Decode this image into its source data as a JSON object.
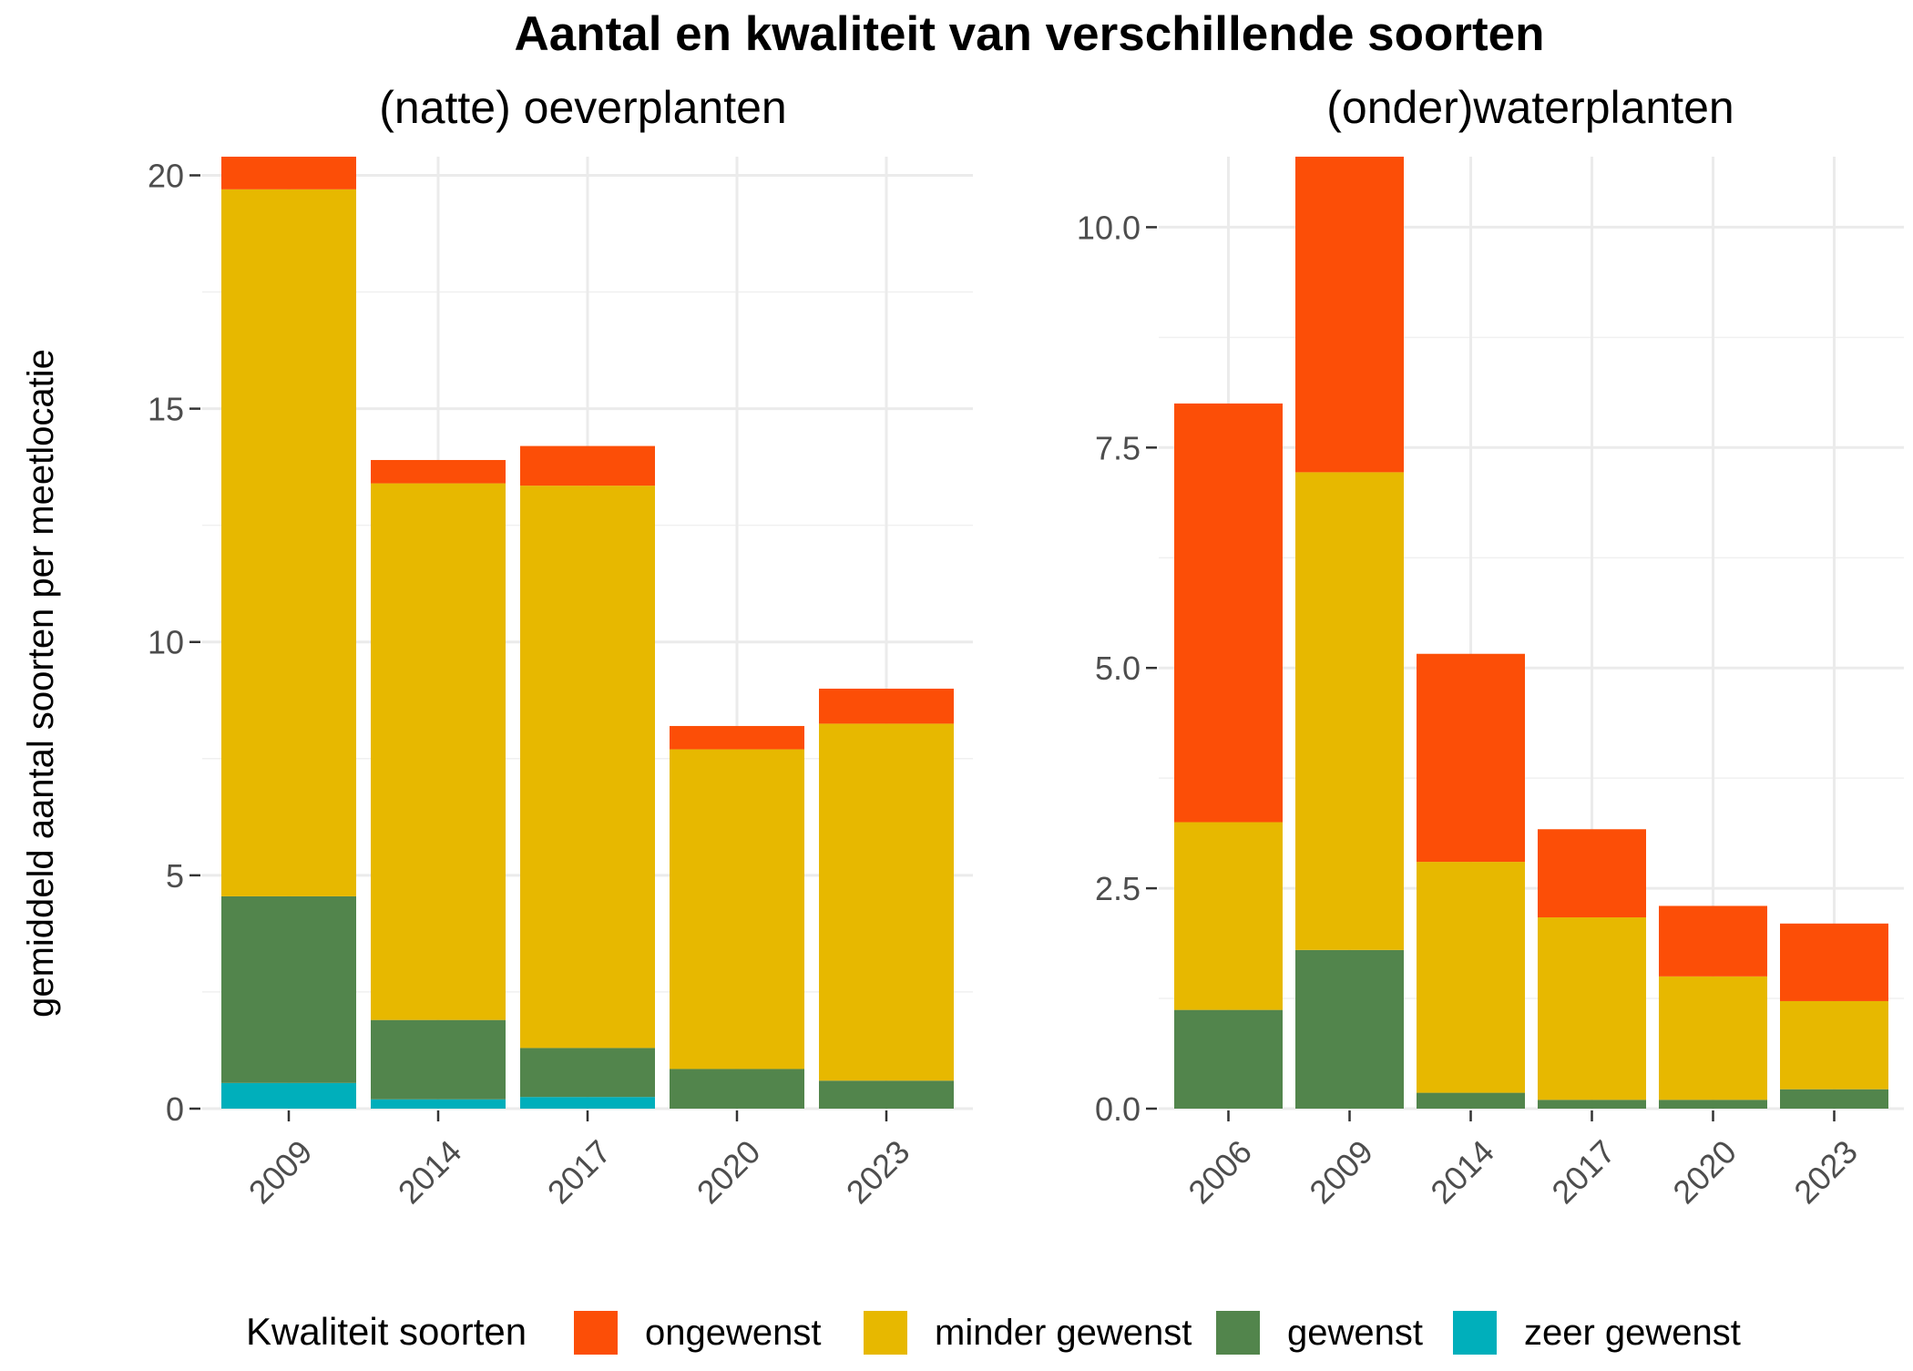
{
  "title": "Aantal en kwaliteit van verschillende soorten",
  "ylabel": "gemiddeld aantal soorten per meetlocatie",
  "legend": {
    "title": "Kwaliteit soorten",
    "items": [
      {
        "key": "ongewenst",
        "label": "ongewenst",
        "color": "#FC4E07"
      },
      {
        "key": "minder",
        "label": "minder gewenst",
        "color": "#E7B800"
      },
      {
        "key": "gewenst",
        "label": "gewenst",
        "color": "#52854C"
      },
      {
        "key": "zeer",
        "label": "zeer gewenst",
        "color": "#00AFBB"
      }
    ]
  },
  "chart_data": [
    {
      "type": "bar",
      "stacked": true,
      "title": "(natte) oeverplanten",
      "categories": [
        "2009",
        "2014",
        "2017",
        "2020",
        "2023"
      ],
      "ylim": [
        0,
        20.4
      ],
      "yticks": [
        0,
        5,
        10,
        15,
        20
      ],
      "ytick_labels": [
        "0",
        "5",
        "10",
        "15",
        "20"
      ],
      "series": [
        {
          "name": "zeer gewenst",
          "key": "zeer",
          "values": [
            0.55,
            0.2,
            0.25,
            0.0,
            0.0
          ]
        },
        {
          "name": "gewenst",
          "key": "gewenst",
          "values": [
            4.0,
            1.7,
            1.05,
            0.85,
            0.6
          ]
        },
        {
          "name": "minder gewenst",
          "key": "minder",
          "values": [
            15.15,
            11.5,
            12.05,
            6.85,
            7.65
          ]
        },
        {
          "name": "ongewenst",
          "key": "ongewenst",
          "values": [
            0.7,
            0.5,
            0.85,
            0.5,
            0.75
          ]
        }
      ]
    },
    {
      "type": "bar",
      "stacked": true,
      "title": "(onder)waterplanten",
      "categories": [
        "2006",
        "2009",
        "2014",
        "2017",
        "2020",
        "2023"
      ],
      "ylim": [
        0,
        10.8
      ],
      "yticks": [
        0,
        2.5,
        5,
        7.5,
        10
      ],
      "ytick_labels": [
        "0.0",
        "2.5",
        "5.0",
        "7.5",
        "10.0"
      ],
      "series": [
        {
          "name": "zeer gewenst",
          "key": "zeer",
          "values": [
            0,
            0,
            0,
            0,
            0,
            0
          ]
        },
        {
          "name": "gewenst",
          "key": "gewenst",
          "values": [
            1.12,
            1.8,
            0.18,
            0.1,
            0.1,
            0.22
          ]
        },
        {
          "name": "minder gewenst",
          "key": "minder",
          "values": [
            2.13,
            5.42,
            2.62,
            2.07,
            1.4,
            1.0
          ]
        },
        {
          "name": "ongewenst",
          "key": "ongewenst",
          "values": [
            4.75,
            3.58,
            2.36,
            1.0,
            0.8,
            0.88
          ]
        }
      ]
    }
  ]
}
